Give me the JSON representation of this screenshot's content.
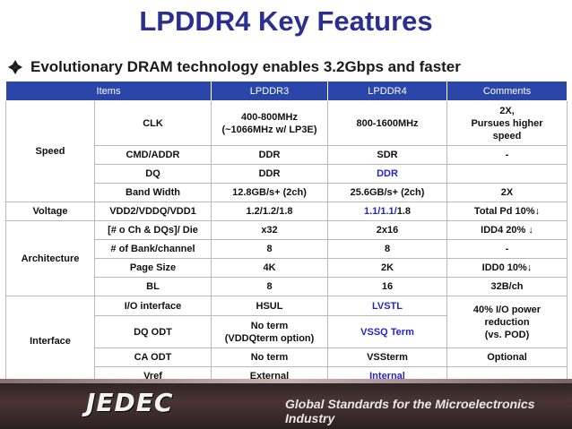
{
  "slide": {
    "title": "LPDDR4 Key Features",
    "bullet": "Evolutionary DRAM technology enables 3.2Gbps and faster"
  },
  "table": {
    "headers": [
      "Items",
      "LPDDR3",
      "LPDDR4",
      "Comments"
    ],
    "groups": {
      "speed": "Speed",
      "voltage": "Voltage",
      "architecture": "Architecture",
      "interface": "Interface"
    },
    "rows": {
      "clk": {
        "item": "CLK",
        "lpddr3_l1": "400-800MHz",
        "lpddr3_l2": "(~1066MHz w/ LP3E)",
        "lpddr4": "800-1600MHz",
        "comment_l1": "2X,",
        "comment_l2": "Pursues higher",
        "comment_l3": "speed"
      },
      "cmd": {
        "item": "CMD/ADDR",
        "lpddr3": "DDR",
        "lpddr4": "SDR",
        "comment": "-"
      },
      "dq": {
        "item": "DQ",
        "lpddr3": "DDR",
        "lpddr4": "DDR",
        "comment": ""
      },
      "bw": {
        "item": "Band Width",
        "lpddr3": "12.8GB/s+ (2ch)",
        "lpddr4": "25.6GB/s+ (2ch)",
        "comment": "2X"
      },
      "vdd": {
        "item": "VDD2/VDDQ/VDD1",
        "lpddr3": "1.2/1.2/1.8",
        "lpddr4_a": "1.1/1.1/",
        "lpddr4_b": "1.8",
        "comment": "Total Pd 10%↓"
      },
      "ch": {
        "item": "[# o Ch  & DQs]/ Die",
        "lpddr3": "x32",
        "lpddr4": "2x16",
        "comment": "IDD4 20% ↓"
      },
      "bank": {
        "item": "# of Bank/channel",
        "lpddr3": "8",
        "lpddr4": "8",
        "comment": "-"
      },
      "page": {
        "item": "Page Size",
        "lpddr3": "4K",
        "lpddr4": "2K",
        "comment": "IDD0 10%↓"
      },
      "bl": {
        "item": "BL",
        "lpddr3": "8",
        "lpddr4": "16",
        "comment": "32B/ch"
      },
      "io": {
        "item": "I/O interface",
        "lpddr3": "HSUL",
        "lpddr4": "LVSTL",
        "comment_l1": "40% I/O power",
        "comment_l2": "reduction",
        "comment_l3": "(vs. POD)"
      },
      "dqodt": {
        "item": "DQ ODT",
        "lpddr3_l1": "No term",
        "lpddr3_l2": "(VDDQterm option)",
        "lpddr4": "VSSQ Term"
      },
      "caodt": {
        "item": "CA ODT",
        "lpddr3": "No term",
        "lpddr4": "VSSterm",
        "comment": "Optional"
      },
      "vref": {
        "item": "Vref",
        "lpddr3": "External",
        "lpddr4": "Internal",
        "comment": ""
      }
    }
  },
  "footer": {
    "logo_text": "JEDEC",
    "tagline": "Global Standards for the Microelectronics Industry"
  },
  "colors": {
    "title": "#2b2f8f",
    "header_bg": "#2b46a8",
    "highlight_text": "#2626c8",
    "footer_bg": "#3a2a2a"
  },
  "icons": {
    "bullet": "diamond-bullet-icon"
  }
}
